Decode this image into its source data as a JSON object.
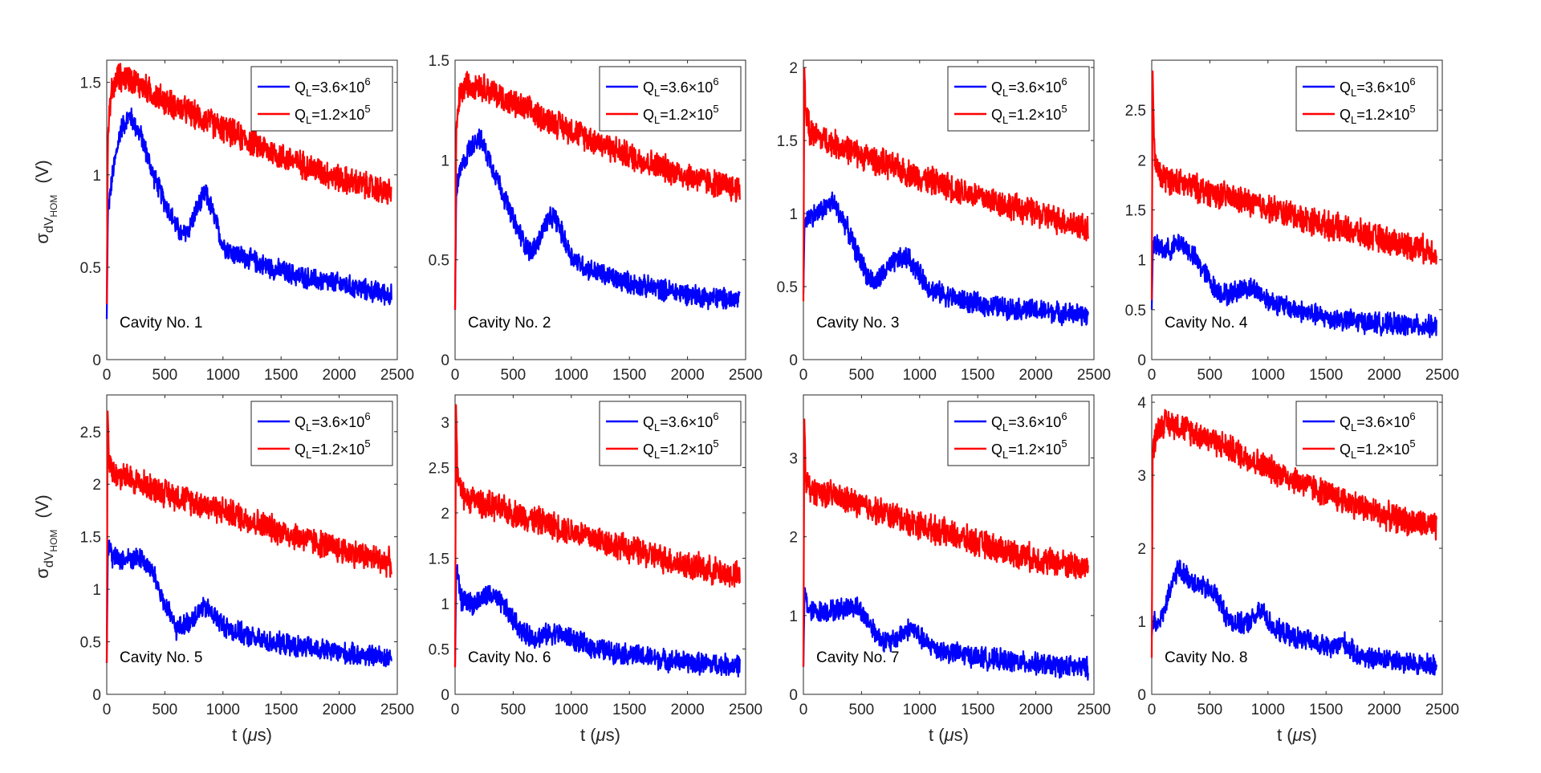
{
  "legend": {
    "series": [
      {
        "name": "QL=3.6x10^6",
        "prefix": "Q",
        "sub": "L",
        "mid": "=3.6×10",
        "sup": "6",
        "color": "#0000ff"
      },
      {
        "name": "QL=1.2x10^5",
        "prefix": "Q",
        "sub": "L",
        "mid": "=1.2×10",
        "sup": "5",
        "color": "#ff0000"
      }
    ]
  },
  "ylabel": {
    "sigma": "σ",
    "sub1": "dV",
    "sub2": "HOM",
    "units": "(V)"
  },
  "xlabel": {
    "pre": "t (",
    "mu": "μ",
    "post": "s)"
  },
  "chart_data": [
    {
      "type": "line",
      "title": "Cavity No. 1",
      "xlim": [
        0,
        2500
      ],
      "ylim": [
        0,
        1.62
      ],
      "xticks": [
        "0",
        "500",
        "1000",
        "1500",
        "2000",
        "2500"
      ],
      "yticks": [
        "0",
        "0.5",
        "1",
        "1.5"
      ],
      "ytick_values": [
        0,
        0.5,
        1,
        1.5
      ],
      "series": [
        {
          "name": "QL=3.6x10^6",
          "x": [
            0,
            10,
            50,
            120,
            200,
            300,
            400,
            500,
            600,
            650,
            700,
            780,
            850,
            900,
            1000,
            1100,
            1200,
            1400,
            1600,
            1800,
            2000,
            2200,
            2450
          ],
          "y": [
            0.22,
            0.8,
            1.0,
            1.25,
            1.32,
            1.2,
            1.0,
            0.85,
            0.72,
            0.67,
            0.7,
            0.82,
            0.9,
            0.82,
            0.62,
            0.57,
            0.55,
            0.5,
            0.46,
            0.43,
            0.41,
            0.38,
            0.35
          ]
        },
        {
          "name": "QL=1.2x10^5",
          "x": [
            0,
            10,
            40,
            100,
            200,
            500,
            1000,
            1500,
            2000,
            2450
          ],
          "y": [
            0.3,
            1.2,
            1.45,
            1.53,
            1.52,
            1.4,
            1.25,
            1.1,
            0.98,
            0.9
          ]
        }
      ]
    },
    {
      "type": "line",
      "title": "Cavity No. 2",
      "xlim": [
        0,
        2500
      ],
      "ylim": [
        0,
        1.5
      ],
      "xticks": [
        "0",
        "500",
        "1000",
        "1500",
        "2000",
        "2500"
      ],
      "yticks": [
        "0",
        "0.5",
        "1",
        "1.5"
      ],
      "ytick_values": [
        0,
        0.5,
        1,
        1.5
      ],
      "series": [
        {
          "name": "QL=3.6x10^6",
          "x": [
            0,
            10,
            50,
            120,
            200,
            300,
            400,
            500,
            600,
            650,
            700,
            780,
            850,
            900,
            1000,
            1100,
            1200,
            1400,
            1600,
            1800,
            2000,
            2200,
            2450
          ],
          "y": [
            0.25,
            0.85,
            0.95,
            1.05,
            1.12,
            1.0,
            0.85,
            0.7,
            0.58,
            0.54,
            0.57,
            0.68,
            0.72,
            0.66,
            0.52,
            0.47,
            0.44,
            0.4,
            0.37,
            0.35,
            0.33,
            0.31,
            0.3
          ]
        },
        {
          "name": "QL=1.2x10^5",
          "x": [
            0,
            10,
            40,
            100,
            200,
            500,
            1000,
            1500,
            2000,
            2450
          ],
          "y": [
            0.25,
            1.15,
            1.32,
            1.38,
            1.38,
            1.28,
            1.15,
            1.02,
            0.92,
            0.85
          ]
        }
      ]
    },
    {
      "type": "line",
      "title": "Cavity No. 3",
      "xlim": [
        0,
        2500
      ],
      "ylim": [
        0,
        2.05
      ],
      "xticks": [
        "0",
        "500",
        "1000",
        "1500",
        "2000",
        "2500"
      ],
      "yticks": [
        "0",
        "0.5",
        "1",
        "1.5",
        "2"
      ],
      "ytick_values": [
        0,
        0.5,
        1,
        1.5,
        2
      ],
      "series": [
        {
          "name": "QL=3.6x10^6",
          "x": [
            0,
            10,
            50,
            120,
            250,
            350,
            450,
            550,
            620,
            700,
            800,
            900,
            1000,
            1100,
            1300,
            1500,
            1800,
            2100,
            2450
          ],
          "y": [
            0.45,
            0.95,
            0.98,
            1.0,
            1.08,
            0.95,
            0.75,
            0.58,
            0.52,
            0.6,
            0.68,
            0.7,
            0.58,
            0.48,
            0.42,
            0.38,
            0.35,
            0.33,
            0.3
          ]
        },
        {
          "name": "QL=1.2x10^5",
          "x": [
            0,
            8,
            20,
            60,
            200,
            500,
            1000,
            1500,
            2000,
            2450
          ],
          "y": [
            0.4,
            2.0,
            1.7,
            1.55,
            1.5,
            1.4,
            1.25,
            1.12,
            1.0,
            0.9
          ]
        }
      ]
    },
    {
      "type": "line",
      "title": "Cavity No. 4",
      "xlim": [
        0,
        2500
      ],
      "ylim": [
        0,
        3.0
      ],
      "xticks": [
        "0",
        "500",
        "1000",
        "1500",
        "2000",
        "2500"
      ],
      "yticks": [
        "0",
        "0.5",
        "1",
        "1.5",
        "2",
        "2.5"
      ],
      "ytick_values": [
        0,
        0.5,
        1,
        1.5,
        2,
        2.5
      ],
      "series": [
        {
          "name": "QL=3.6x10^6",
          "x": [
            0,
            10,
            50,
            150,
            250,
            350,
            450,
            550,
            650,
            800,
            900,
            1000,
            1100,
            1300,
            1500,
            1800,
            2100,
            2450
          ],
          "y": [
            0.5,
            1.15,
            1.12,
            1.1,
            1.18,
            1.05,
            0.88,
            0.7,
            0.65,
            0.72,
            0.7,
            0.6,
            0.55,
            0.48,
            0.42,
            0.38,
            0.35,
            0.33
          ]
        },
        {
          "name": "QL=1.2x10^5",
          "x": [
            0,
            8,
            20,
            60,
            200,
            500,
            1000,
            1500,
            2000,
            2450
          ],
          "y": [
            0.6,
            2.9,
            2.1,
            1.85,
            1.78,
            1.68,
            1.52,
            1.35,
            1.2,
            1.08
          ]
        }
      ]
    },
    {
      "type": "line",
      "title": "Cavity No. 5",
      "xlim": [
        0,
        2500
      ],
      "ylim": [
        0,
        2.85
      ],
      "xticks": [
        "0",
        "500",
        "1000",
        "1500",
        "2000",
        "2500"
      ],
      "yticks": [
        "0",
        "0.5",
        "1",
        "1.5",
        "2",
        "2.5"
      ],
      "ytick_values": [
        0,
        0.5,
        1,
        1.5,
        2,
        2.5
      ],
      "series": [
        {
          "name": "QL=3.6x10^6",
          "x": [
            0,
            10,
            50,
            150,
            300,
            400,
            500,
            600,
            700,
            800,
            850,
            900,
            1000,
            1100,
            1300,
            1500,
            1800,
            2100,
            2450
          ],
          "y": [
            0.3,
            1.45,
            1.3,
            1.28,
            1.3,
            1.15,
            0.85,
            0.62,
            0.68,
            0.8,
            0.82,
            0.78,
            0.66,
            0.6,
            0.52,
            0.48,
            0.43,
            0.38,
            0.35
          ]
        },
        {
          "name": "QL=1.2x10^5",
          "x": [
            0,
            8,
            20,
            60,
            200,
            500,
            1000,
            1500,
            2000,
            2450
          ],
          "y": [
            0.3,
            2.7,
            2.25,
            2.1,
            2.05,
            1.92,
            1.75,
            1.55,
            1.38,
            1.25
          ]
        }
      ]
    },
    {
      "type": "line",
      "title": "Cavity No. 6",
      "xlim": [
        0,
        2500
      ],
      "ylim": [
        0,
        3.3
      ],
      "xticks": [
        "0",
        "500",
        "1000",
        "1500",
        "2000",
        "2500"
      ],
      "yticks": [
        "0",
        "0.5",
        "1",
        "1.5",
        "2",
        "2.5",
        "3"
      ],
      "ytick_values": [
        0,
        0.5,
        1,
        1.5,
        2,
        2.5,
        3
      ],
      "series": [
        {
          "name": "QL=3.6x10^6",
          "x": [
            0,
            10,
            50,
            150,
            300,
            400,
            500,
            600,
            700,
            850,
            1000,
            1100,
            1300,
            1500,
            1800,
            2100,
            2450
          ],
          "y": [
            0.3,
            1.4,
            1.05,
            1.0,
            1.1,
            1.0,
            0.82,
            0.66,
            0.63,
            0.68,
            0.62,
            0.55,
            0.48,
            0.44,
            0.38,
            0.34,
            0.32
          ]
        },
        {
          "name": "QL=1.2x10^5",
          "x": [
            0,
            8,
            20,
            60,
            200,
            500,
            1000,
            1500,
            2000,
            2450
          ],
          "y": [
            0.3,
            3.2,
            2.4,
            2.2,
            2.12,
            2.0,
            1.8,
            1.6,
            1.42,
            1.3
          ]
        }
      ]
    },
    {
      "type": "line",
      "title": "Cavity No. 7",
      "xlim": [
        0,
        2500
      ],
      "ylim": [
        0,
        3.8
      ],
      "xticks": [
        "0",
        "500",
        "1000",
        "1500",
        "2000",
        "2500"
      ],
      "yticks": [
        "0",
        "1",
        "2",
        "3"
      ],
      "ytick_values": [
        0,
        1,
        2,
        3
      ],
      "series": [
        {
          "name": "QL=3.6x10^6",
          "x": [
            0,
            10,
            50,
            150,
            300,
            450,
            550,
            650,
            750,
            850,
            930,
            1050,
            1200,
            1400,
            1600,
            1900,
            2200,
            2450
          ],
          "y": [
            0.35,
            1.3,
            1.05,
            1.05,
            1.08,
            1.12,
            0.95,
            0.72,
            0.65,
            0.78,
            0.85,
            0.65,
            0.55,
            0.5,
            0.45,
            0.4,
            0.36,
            0.33
          ]
        },
        {
          "name": "QL=1.2x10^5",
          "x": [
            0,
            8,
            20,
            60,
            200,
            500,
            1000,
            1500,
            2000,
            2450
          ],
          "y": [
            0.35,
            3.5,
            2.75,
            2.6,
            2.55,
            2.4,
            2.15,
            1.92,
            1.72,
            1.6
          ]
        }
      ]
    },
    {
      "type": "line",
      "title": "Cavity No. 8",
      "xlim": [
        0,
        2500
      ],
      "ylim": [
        0,
        4.1
      ],
      "xticks": [
        "0",
        "500",
        "1000",
        "1500",
        "2000",
        "2500"
      ],
      "yticks": [
        "0",
        "1",
        "2",
        "3",
        "4"
      ],
      "ytick_values": [
        0,
        1,
        2,
        3,
        4
      ],
      "series": [
        {
          "name": "QL=3.6x10^6",
          "x": [
            0,
            10,
            50,
            120,
            220,
            350,
            450,
            550,
            650,
            750,
            850,
            950,
            1050,
            1200,
            1400,
            1550,
            1650,
            1750,
            1900,
            2050,
            2200,
            2450
          ],
          "y": [
            0.8,
            1.0,
            0.95,
            1.2,
            1.72,
            1.55,
            1.45,
            1.38,
            1.05,
            0.95,
            1.0,
            1.15,
            0.9,
            0.8,
            0.7,
            0.62,
            0.72,
            0.55,
            0.48,
            0.5,
            0.42,
            0.4
          ]
        },
        {
          "name": "QL=1.2x10^5",
          "x": [
            0,
            8,
            40,
            100,
            200,
            500,
            1000,
            1500,
            2000,
            2450
          ],
          "y": [
            0.5,
            3.3,
            3.6,
            3.72,
            3.7,
            3.5,
            3.1,
            2.75,
            2.45,
            2.28
          ]
        }
      ]
    }
  ]
}
